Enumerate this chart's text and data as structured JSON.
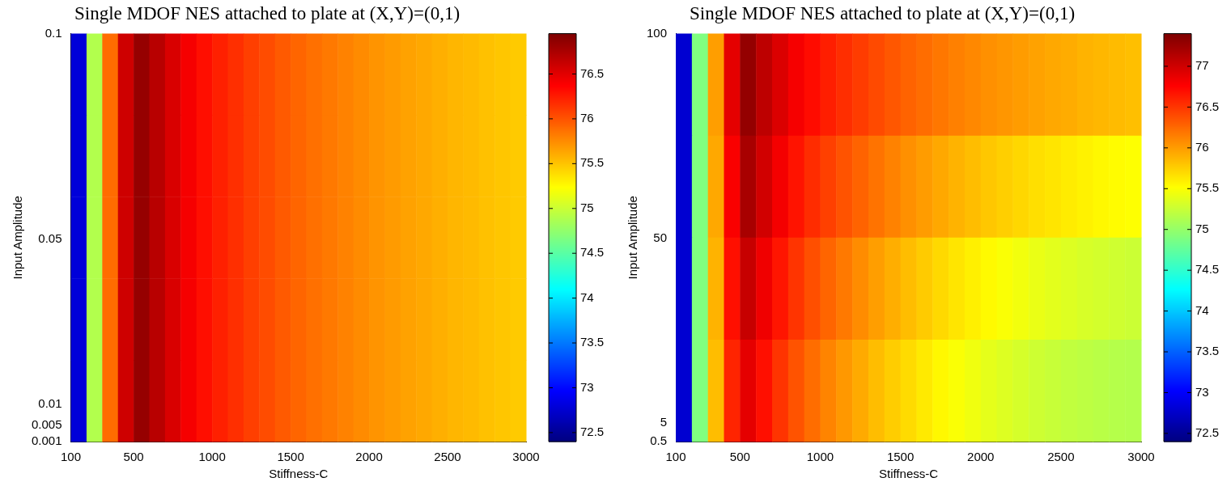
{
  "chart_data": [
    {
      "type": "heatmap",
      "title": "Single MDOF NES attached to plate at (X,Y)=(0,1)",
      "xlabel": "Stiffness-C",
      "ylabel": "Input Amplitude",
      "x": [
        150,
        250,
        350,
        450,
        550,
        650,
        750,
        850,
        950,
        1050,
        1150,
        1250,
        1350,
        1450,
        1550,
        1650,
        1750,
        1850,
        1950,
        2050,
        2150,
        2250,
        2350,
        2450,
        2550,
        2650,
        2750,
        2850,
        2950
      ],
      "xlim": [
        100,
        3000
      ],
      "xticks": [
        100,
        500,
        1000,
        1500,
        2000,
        2500,
        3000
      ],
      "ylim": [
        0.001,
        0.1
      ],
      "yticks": [
        0.001,
        0.005,
        0.01,
        0.05,
        0.1
      ],
      "cells": [
        [
          72.8,
          74.9,
          75.9,
          76.6,
          76.85,
          76.7,
          76.55,
          76.42,
          76.32,
          76.24,
          76.17,
          76.1,
          76.04,
          75.98,
          75.93,
          75.88,
          75.84,
          75.8,
          75.76,
          75.72,
          75.69,
          75.66,
          75.63,
          75.6,
          75.57,
          75.55,
          75.52,
          75.5,
          75.48
        ],
        [
          72.8,
          74.9,
          75.9,
          76.6,
          76.85,
          76.7,
          76.55,
          76.42,
          76.32,
          76.24,
          76.17,
          76.1,
          76.04,
          75.98,
          75.93,
          75.88,
          75.84,
          75.8,
          75.76,
          75.72,
          75.69,
          75.66,
          75.63,
          75.6,
          75.57,
          75.55,
          75.52,
          75.5,
          75.48
        ],
        [
          72.8,
          74.9,
          75.9,
          76.6,
          76.85,
          76.7,
          76.55,
          76.42,
          76.32,
          76.24,
          76.17,
          76.1,
          76.04,
          75.98,
          75.93,
          75.88,
          75.84,
          75.8,
          75.76,
          75.72,
          75.69,
          75.66,
          75.63,
          75.6,
          75.57,
          75.55,
          75.52,
          75.5,
          75.48
        ],
        [
          72.8,
          74.9,
          75.9,
          76.6,
          76.85,
          76.7,
          76.55,
          76.42,
          76.32,
          76.24,
          76.17,
          76.1,
          76.04,
          75.98,
          75.93,
          75.88,
          75.84,
          75.8,
          75.76,
          75.72,
          75.69,
          75.66,
          75.63,
          75.6,
          75.57,
          75.55,
          75.52,
          75.5,
          75.48
        ],
        [
          72.8,
          74.9,
          75.9,
          76.6,
          76.85,
          76.7,
          76.55,
          76.42,
          76.32,
          76.24,
          76.17,
          76.1,
          76.04,
          75.98,
          75.93,
          75.88,
          75.84,
          75.8,
          75.76,
          75.72,
          75.69,
          75.66,
          75.63,
          75.6,
          75.57,
          75.55,
          75.52,
          75.5,
          75.48
        ]
      ],
      "clim": [
        72.4,
        76.95
      ],
      "cticks": [
        72.5,
        73,
        73.5,
        74,
        74.5,
        75,
        75.5,
        76,
        76.5
      ]
    },
    {
      "type": "heatmap",
      "title": "Single MDOF NES attached to plate at (X,Y)=(0,1)",
      "xlabel": "Stiffness-C",
      "ylabel": "Input Amplitude",
      "x": [
        150,
        250,
        350,
        450,
        550,
        650,
        750,
        850,
        950,
        1050,
        1150,
        1250,
        1350,
        1450,
        1550,
        1650,
        1750,
        1850,
        1950,
        2050,
        2150,
        2250,
        2350,
        2450,
        2550,
        2650,
        2750,
        2850,
        2950
      ],
      "xlim": [
        100,
        3000
      ],
      "xticks": [
        100,
        500,
        1000,
        1500,
        2000,
        2500,
        3000
      ],
      "ylim": [
        0.5,
        100
      ],
      "yticks": [
        0.5,
        5,
        50,
        100
      ],
      "cells": [
        [
          72.8,
          74.9,
          76.0,
          76.9,
          77.3,
          77.1,
          76.95,
          76.82,
          76.72,
          76.63,
          76.55,
          76.48,
          76.41,
          76.35,
          76.29,
          76.24,
          76.19,
          76.15,
          76.11,
          76.07,
          76.04,
          76.01,
          75.98,
          75.95,
          75.93,
          75.9,
          75.88,
          75.86,
          75.84
        ],
        [
          72.8,
          74.9,
          75.95,
          76.8,
          77.2,
          77.0,
          76.83,
          76.68,
          76.56,
          76.46,
          76.37,
          76.29,
          76.21,
          76.14,
          76.07,
          76.01,
          75.95,
          75.9,
          75.85,
          75.8,
          75.76,
          75.72,
          75.68,
          75.65,
          75.62,
          75.59,
          75.56,
          75.54,
          75.52
        ],
        [
          72.8,
          74.9,
          75.9,
          76.7,
          77.05,
          76.85,
          76.67,
          76.52,
          76.39,
          76.28,
          76.18,
          76.09,
          76.0,
          75.92,
          75.85,
          75.78,
          75.71,
          75.65,
          75.6,
          75.55,
          75.5,
          75.46,
          75.42,
          75.39,
          75.36,
          75.33,
          75.31,
          75.29,
          75.27
        ],
        [
          72.8,
          74.9,
          75.85,
          76.6,
          76.9,
          76.7,
          76.52,
          76.37,
          76.24,
          76.13,
          76.03,
          75.94,
          75.85,
          75.77,
          75.7,
          75.63,
          75.56,
          75.5,
          75.45,
          75.4,
          75.36,
          75.32,
          75.28,
          75.25,
          75.22,
          75.2,
          75.18,
          75.16,
          75.15
        ]
      ],
      "clim": [
        72.4,
        77.4
      ],
      "cticks": [
        72.5,
        73,
        73.5,
        74,
        74.5,
        75,
        75.5,
        76,
        76.5,
        77
      ]
    }
  ]
}
